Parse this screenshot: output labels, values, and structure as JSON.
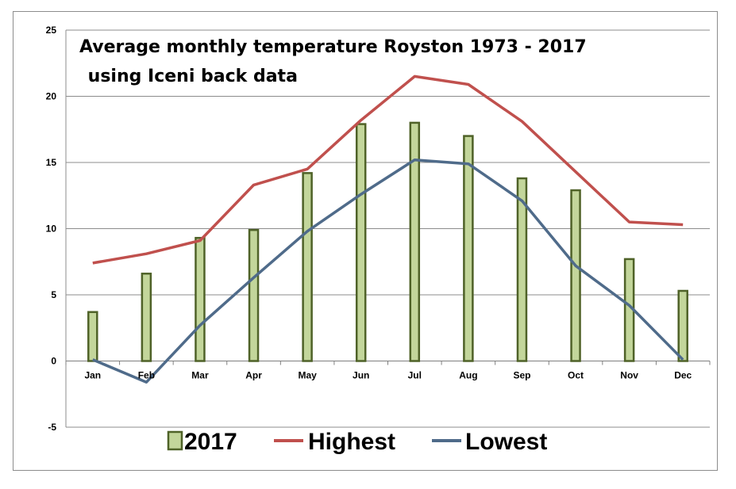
{
  "chart_data": {
    "type": "bar+line",
    "title_lines": [
      "Average monthly temperature Royston 1973 - 2017",
      " using Iceni back data"
    ],
    "categories": [
      "Jan",
      "Feb",
      "Mar",
      "Apr",
      "May",
      "Jun",
      "Jul",
      "Aug",
      "Sep",
      "Oct",
      "Nov",
      "Dec"
    ],
    "ylim": [
      -5,
      25
    ],
    "yticks": [
      -5,
      0,
      5,
      10,
      15,
      20,
      25
    ],
    "grid": true,
    "legend_position": "bottom",
    "series": [
      {
        "name": "2017",
        "kind": "bar",
        "color": "#c3d69b",
        "stroke": "#4f6228",
        "values": [
          3.7,
          6.6,
          9.3,
          9.9,
          14.2,
          17.9,
          18.0,
          17.0,
          13.8,
          12.9,
          7.7,
          5.3
        ]
      },
      {
        "name": "Highest",
        "kind": "line",
        "color": "#c0504d",
        "values": [
          7.4,
          8.1,
          9.1,
          13.3,
          14.5,
          18.2,
          21.5,
          20.9,
          18.1,
          14.3,
          10.5,
          10.3
        ]
      },
      {
        "name": "Lowest",
        "kind": "line",
        "color": "#4f6b8a",
        "values": [
          0.1,
          -1.6,
          2.7,
          6.3,
          9.8,
          12.6,
          15.2,
          14.9,
          12.1,
          7.2,
          4.2,
          0.1
        ]
      }
    ]
  }
}
